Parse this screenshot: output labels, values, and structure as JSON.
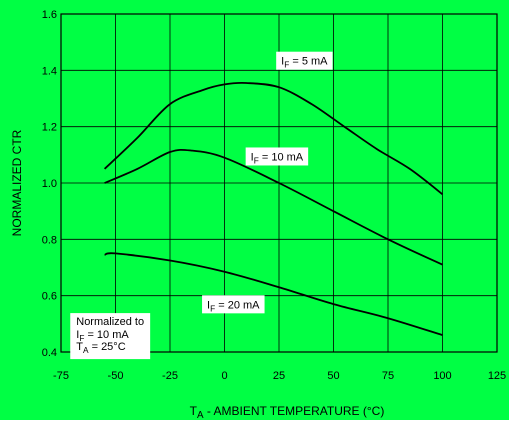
{
  "colors": {
    "background": "#00ff44",
    "line": "#000000",
    "grid": "#000000",
    "label_box": "#ffffff"
  },
  "chart_data": {
    "type": "line",
    "title": "",
    "xlabel_main": "T",
    "xlabel_sub": "A",
    "xlabel_rest": " - AMBIENT TEMPERATURE (°C)",
    "ylabel": "NORMALIZED CTR",
    "xlim": [
      -75,
      125
    ],
    "ylim": [
      0.4,
      1.6
    ],
    "x_ticks": [
      -75,
      -50,
      -25,
      0,
      25,
      50,
      75,
      100,
      125
    ],
    "x_tick_labels": [
      "-75",
      "-50",
      "-25",
      "0",
      "25",
      "50",
      "75",
      "100",
      "125"
    ],
    "y_ticks": [
      0.4,
      0.6,
      0.8,
      1.0,
      1.2,
      1.4,
      1.6
    ],
    "y_tick_labels": [
      "0.4",
      "0.6",
      "0.8",
      "1.0",
      "1.2",
      "1.4",
      "1.6"
    ],
    "grid": true,
    "series": [
      {
        "label_main": "I",
        "label_sub": "F",
        "label_rest": " = 5 mA",
        "label_pos": [
          26,
          1.42
        ],
        "x": [
          -55,
          -40,
          -25,
          -10,
          0,
          10,
          25,
          40,
          55,
          70,
          85,
          100
        ],
        "y": [
          1.05,
          1.16,
          1.28,
          1.33,
          1.35,
          1.355,
          1.34,
          1.28,
          1.2,
          1.12,
          1.05,
          0.96
        ]
      },
      {
        "label_main": "I",
        "label_sub": "F",
        "label_rest": " = 10 mA",
        "label_pos": [
          12,
          1.08
        ],
        "x": [
          -55,
          -40,
          -25,
          -15,
          0,
          25,
          50,
          75,
          100
        ],
        "y": [
          1.0,
          1.05,
          1.11,
          1.115,
          1.09,
          1.0,
          0.9,
          0.8,
          0.71
        ]
      },
      {
        "label_main": "I",
        "label_sub": "F",
        "label_rest": " = 20 mA",
        "label_pos": [
          -8,
          0.555
        ],
        "x": [
          -55,
          -50,
          -25,
          0,
          25,
          50,
          75,
          100
        ],
        "y": [
          0.745,
          0.75,
          0.725,
          0.685,
          0.63,
          0.57,
          0.52,
          0.46
        ]
      }
    ],
    "annotation": {
      "lines": [
        {
          "main": "Normalized to",
          "sub": "",
          "rest": ""
        },
        {
          "main": "I",
          "sub": "F",
          "rest": " = 10 mA"
        },
        {
          "main": "T",
          "sub": "A",
          "rest": " = 25°C"
        }
      ],
      "box_pos": [
        -68,
        0.46
      ]
    }
  }
}
